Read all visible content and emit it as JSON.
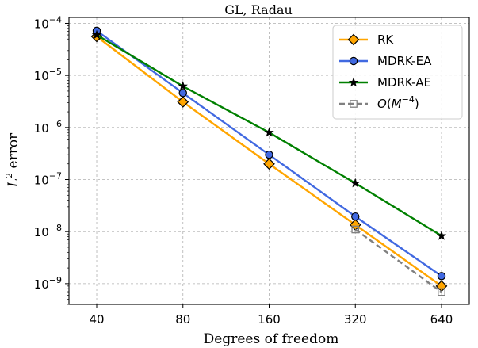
{
  "chart_data": {
    "type": "line",
    "title": "GL, Radau",
    "xlabel": "Degrees of freedom",
    "ylabel": "L² error",
    "x_scale": "log2",
    "y_scale": "log10",
    "x": [
      40,
      80,
      160,
      320,
      640
    ],
    "x_tick_labels": [
      "40",
      "80",
      "160",
      "320",
      "640"
    ],
    "y_ticks": [
      {
        "base": "10",
        "exp": "−4",
        "value": 0.0001
      },
      {
        "base": "10",
        "exp": "−5",
        "value": 1e-05
      },
      {
        "base": "10",
        "exp": "−6",
        "value": 1e-06
      },
      {
        "base": "10",
        "exp": "−7",
        "value": 1e-07
      },
      {
        "base": "10",
        "exp": "−8",
        "value": 1e-08
      },
      {
        "base": "10",
        "exp": "−9",
        "value": 1e-09
      }
    ],
    "ylim": [
      4e-10,
      0.00013
    ],
    "xlim": [
      32,
      800
    ],
    "grid": true,
    "legend_position": "top-right",
    "series": [
      {
        "name": "RK",
        "color": "#FFA500",
        "marker": "diamond",
        "dashed": false,
        "x": [
          40,
          80,
          160,
          320,
          640
        ],
        "values": [
          5.6e-05,
          3.1e-06,
          2e-07,
          1.35e-08,
          9e-10
        ]
      },
      {
        "name": "MDRK-EA",
        "color": "#4169E1",
        "marker": "circle",
        "dashed": false,
        "x": [
          40,
          80,
          160,
          320,
          640
        ],
        "values": [
          7.2e-05,
          4.6e-06,
          3e-07,
          1.95e-08,
          1.4e-09
        ]
      },
      {
        "name": "MDRK-AE",
        "color": "#008000",
        "marker": "star",
        "dashed": false,
        "x": [
          40,
          80,
          160,
          320,
          640
        ],
        "values": [
          6e-05,
          6.2e-06,
          8e-07,
          8.5e-08,
          8.3e-09
        ]
      },
      {
        "name": "O(M^{-4})",
        "color": "#808080",
        "marker": "square",
        "dashed": true,
        "x": [
          320,
          640
        ],
        "values": [
          1.1e-08,
          6.9e-10
        ]
      }
    ]
  }
}
